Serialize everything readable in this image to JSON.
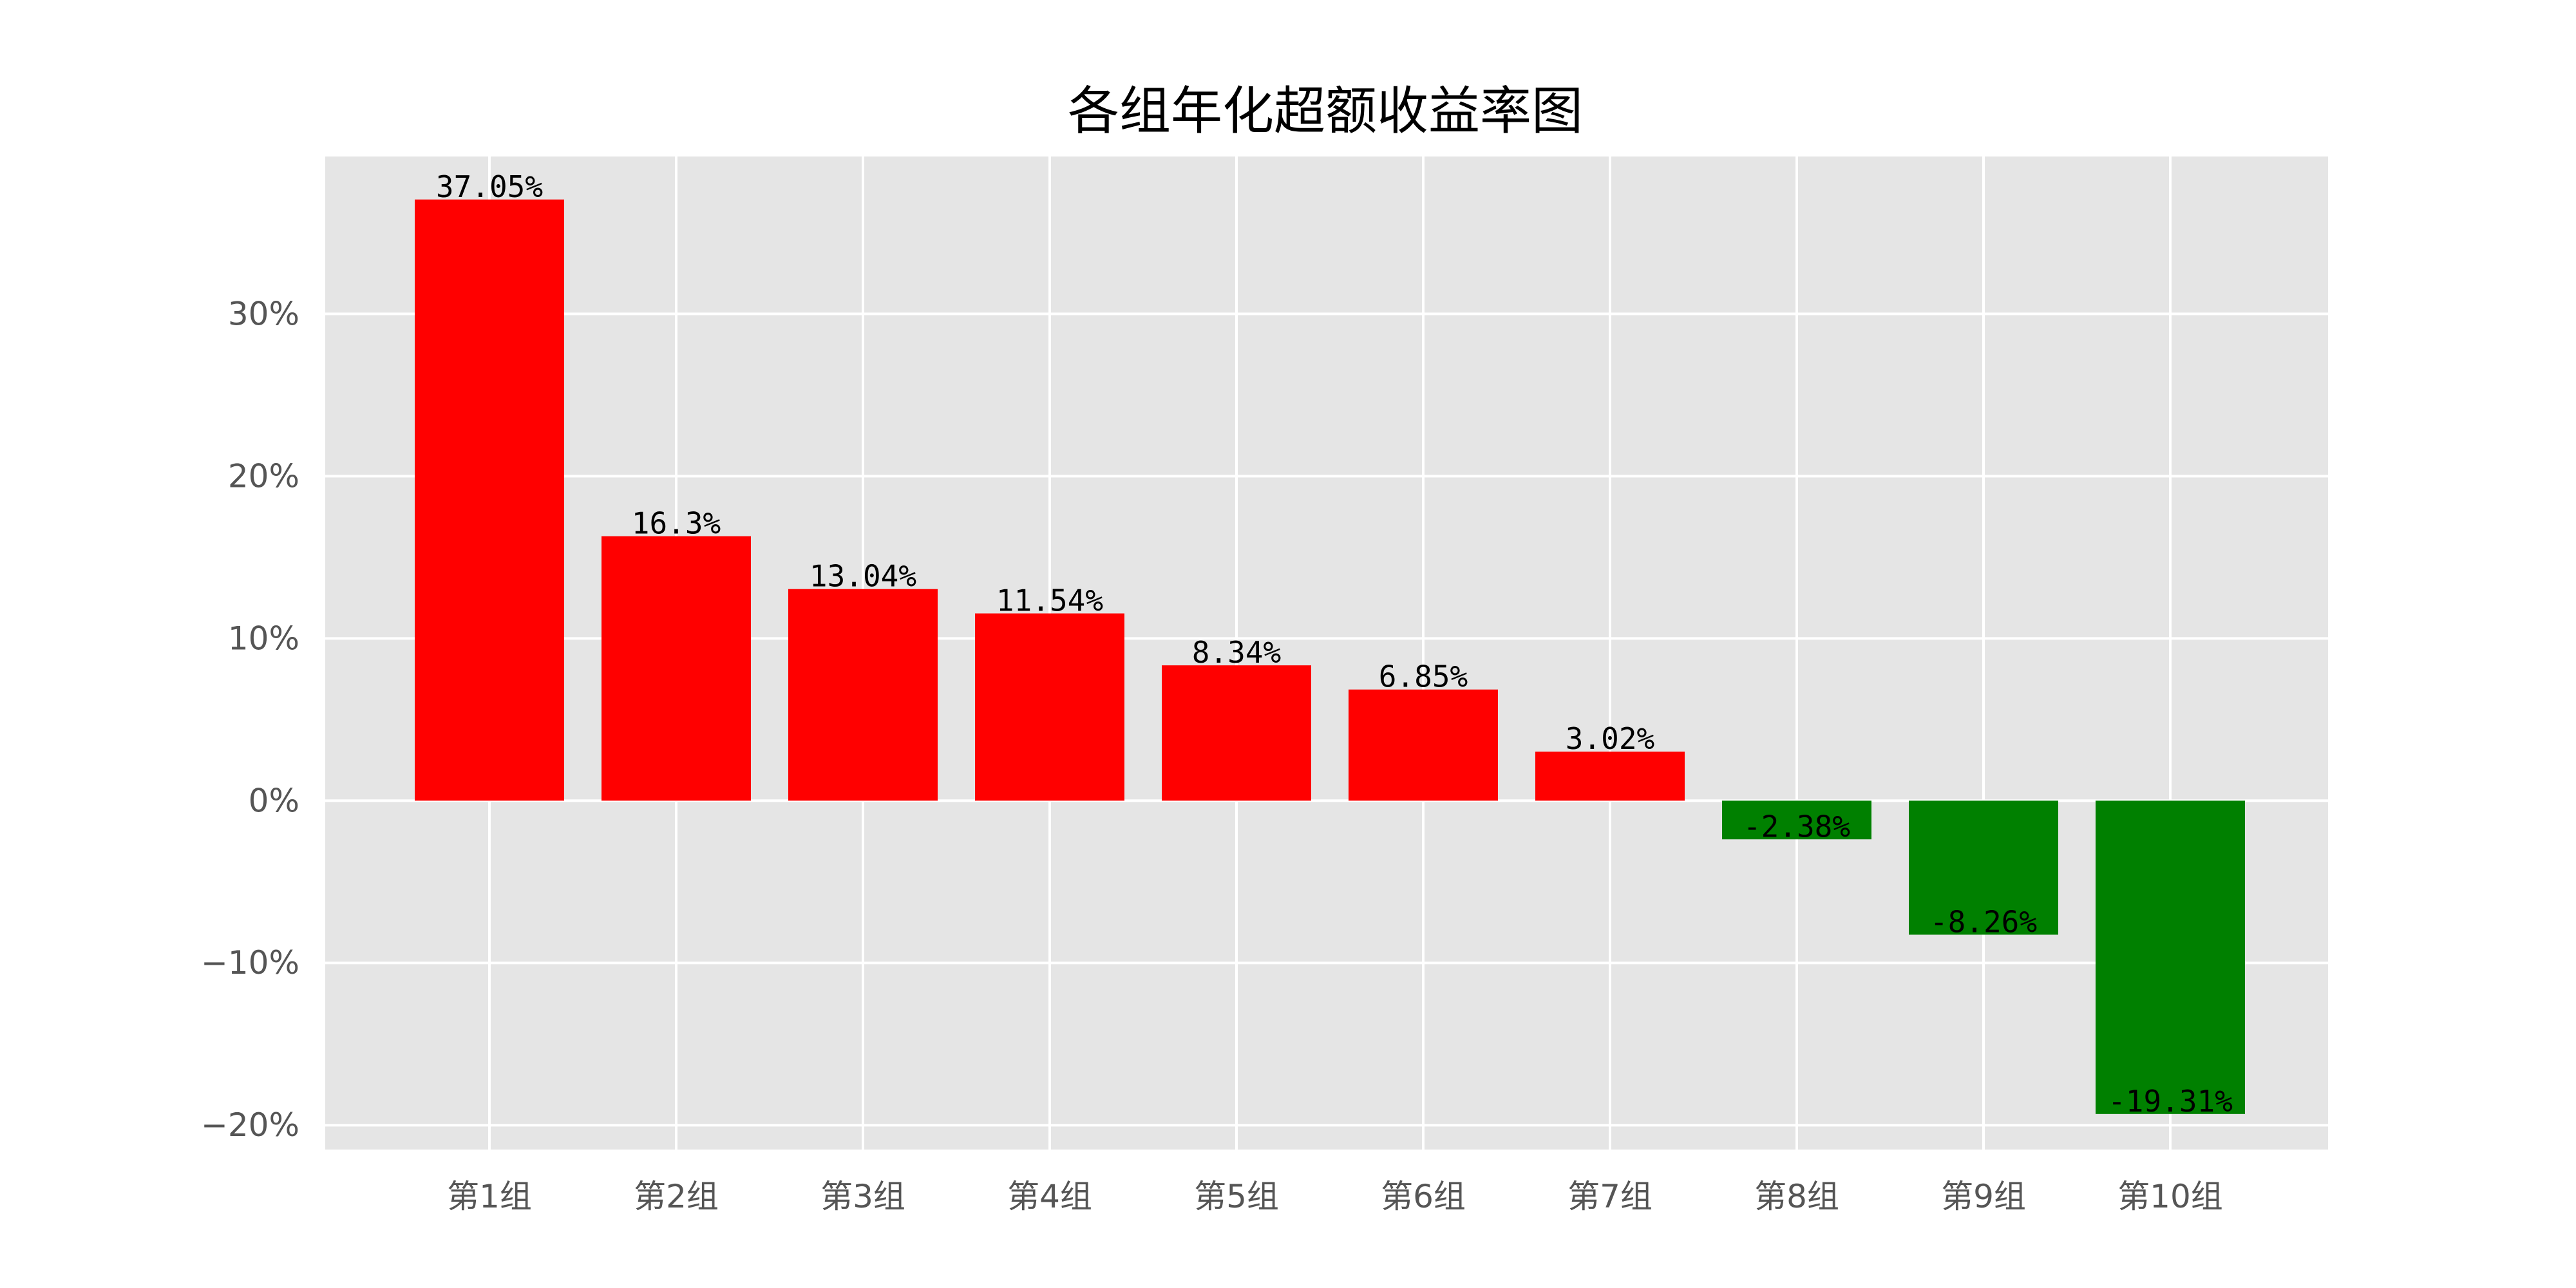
{
  "chart_data": {
    "type": "bar",
    "title": "各组年化超额收益率图",
    "xlabel": "",
    "ylabel": "",
    "categories": [
      "第1组",
      "第2组",
      "第3组",
      "第4组",
      "第5组",
      "第6组",
      "第7组",
      "第8组",
      "第9组",
      "第10组"
    ],
    "values": [
      37.05,
      16.3,
      13.04,
      11.54,
      8.34,
      6.85,
      3.02,
      -2.38,
      -8.26,
      -19.31
    ],
    "data_labels": [
      "37.05%",
      "16.3%",
      "13.04%",
      "11.54%",
      "8.34%",
      "6.85%",
      "3.02%",
      "-2.38%",
      "-8.26%",
      "-19.31%"
    ],
    "y_ticks": [
      -20,
      -10,
      0,
      10,
      20,
      30
    ],
    "y_tick_labels": [
      "−20%",
      "−10%",
      "0%",
      "10%",
      "20%",
      "30%"
    ],
    "ylim": [
      -21.5,
      39.7
    ],
    "unit": "%",
    "grid": true,
    "legend": "none",
    "colors": {
      "positive": "#ff0000",
      "negative": "#008000",
      "plot_background": "#e5e5e5",
      "grid": "#ffffff",
      "tick_text": "#555555",
      "label_text": "#000000"
    }
  }
}
